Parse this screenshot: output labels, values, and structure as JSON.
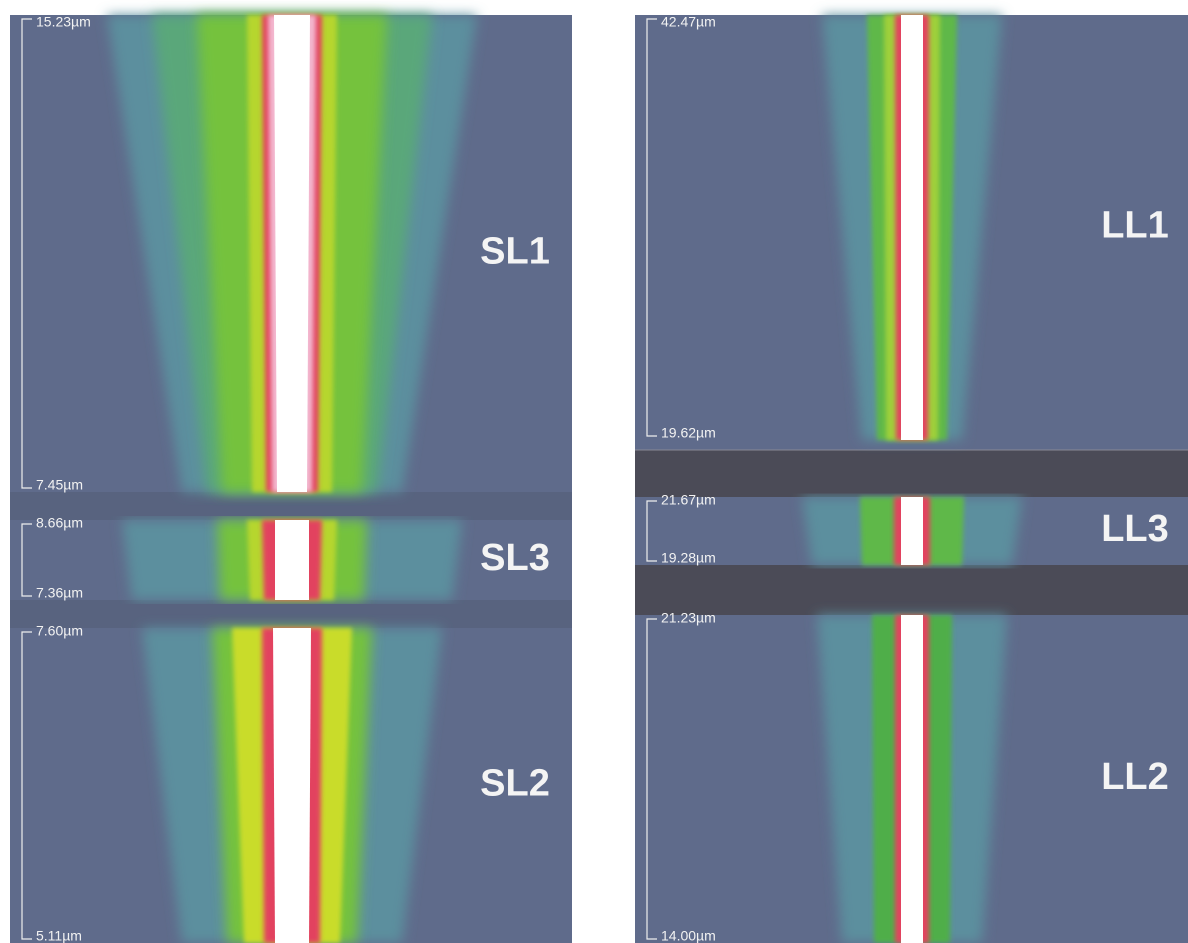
{
  "panels": [
    {
      "segments": [
        {
          "name": "SL1",
          "top_label": "15.23µm",
          "bottom_label": "7.45µm"
        },
        {
          "name": "SL3",
          "top_label": "8.66µm",
          "bottom_label": "7.36µm"
        },
        {
          "name": "SL2",
          "top_label": "7.60µm",
          "bottom_label": "5.11µm"
        }
      ]
    },
    {
      "segments": [
        {
          "name": "LL1",
          "top_label": "42.47µm",
          "bottom_label": "19.62µm"
        },
        {
          "name": "LL3",
          "top_label": "21.67µm",
          "bottom_label": "19.28µm"
        },
        {
          "name": "LL2",
          "top_label": "21.23µm",
          "bottom_label": "14.00µm"
        }
      ]
    }
  ]
}
